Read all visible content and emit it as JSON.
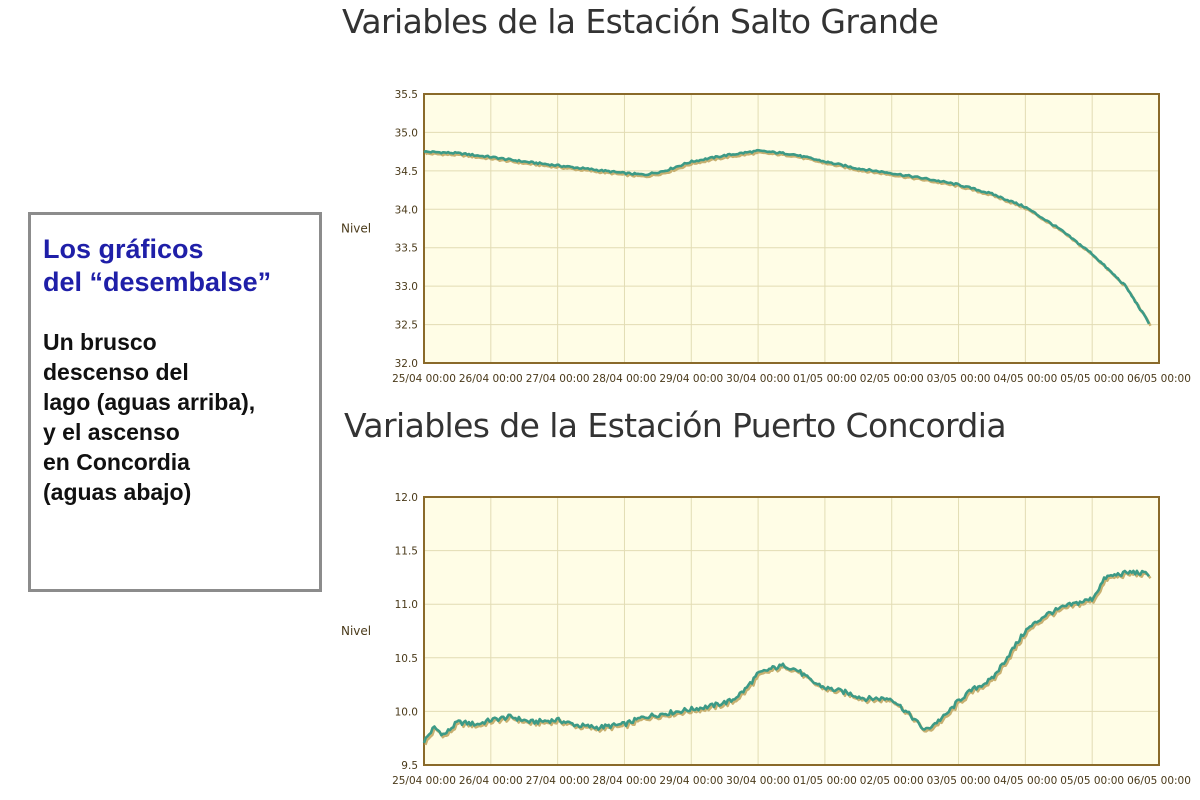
{
  "titles": {
    "top": "Variables de la Estación Salto Grande",
    "bottom": "Variables de la Estación Puerto Concordia"
  },
  "note": {
    "heading_lines": [
      "Los gráficos",
      "del “desembalse”"
    ],
    "body_lines": [
      "Un brusco",
      "descenso del",
      "lago (aguas arriba),",
      "y el ascenso",
      "en Concordia",
      "(aguas abajo)"
    ]
  },
  "colors": {
    "plot_background": "#fffde6",
    "grid": "#e2dcb4",
    "frame": "#8a6a2a",
    "series_line": "#3c9a86",
    "series_shadow": "#c8b070",
    "note_heading": "#1f1fa8",
    "note_border": "#8c8c8c"
  },
  "chart_data": [
    {
      "type": "line",
      "title": "Variables de la Estación Salto Grande",
      "ylabel": "Nivel",
      "xlabel": "",
      "ylim": [
        32.0,
        35.5
      ],
      "yticks": [
        "32.0",
        "32.5",
        "33.0",
        "33.5",
        "34.0",
        "34.5",
        "35.0",
        "35.5"
      ],
      "xlim": [
        0,
        11
      ],
      "xticks": [
        "25/04 00:00",
        "26/04 00:00",
        "27/04 00:00",
        "28/04 00:00",
        "29/04 00:00",
        "30/04 00:00",
        "01/05 00:00",
        "02/05 00:00",
        "03/05 00:00",
        "04/05 00:00",
        "05/05 00:00",
        "06/05 00:00"
      ],
      "grid": true,
      "series": [
        {
          "x": [
            0,
            0.5,
            1,
            1.5,
            2,
            2.5,
            3,
            3.3,
            3.6,
            4,
            4.5,
            5,
            5.5,
            6,
            6.5,
            7,
            7.5,
            8,
            8.5,
            9,
            9.5,
            10,
            10.5,
            10.85
          ],
          "values": [
            34.75,
            34.73,
            34.68,
            34.62,
            34.57,
            34.52,
            34.47,
            34.45,
            34.5,
            34.62,
            34.7,
            34.76,
            34.72,
            34.62,
            34.53,
            34.47,
            34.4,
            34.32,
            34.2,
            34.03,
            33.75,
            33.42,
            33.0,
            32.52
          ]
        }
      ]
    },
    {
      "type": "line",
      "title": "Variables de la Estación Puerto Concordia",
      "ylabel": "Nivel",
      "xlabel": "",
      "ylim": [
        9.5,
        12.0
      ],
      "yticks": [
        "9.5",
        "10.0",
        "10.5",
        "11.0",
        "11.5",
        "12.0"
      ],
      "xlim": [
        0,
        11
      ],
      "xticks": [
        "25/04 00:00",
        "26/04 00:00",
        "27/04 00:00",
        "28/04 00:00",
        "29/04 00:00",
        "30/04 00:00",
        "01/05 00:00",
        "02/05 00:00",
        "03/05 00:00",
        "04/05 00:00",
        "05/05 00:00",
        "06/05 00:00"
      ],
      "grid": true,
      "series": [
        {
          "x": [
            0,
            0.15,
            0.3,
            0.5,
            0.8,
            1,
            1.3,
            1.6,
            2,
            2.3,
            2.6,
            3,
            3.3,
            3.6,
            4,
            4.3,
            4.6,
            4.8,
            5,
            5.2,
            5.4,
            5.6,
            5.8,
            6,
            6.3,
            6.6,
            7,
            7.3,
            7.5,
            7.8,
            8,
            8.2,
            8.5,
            9,
            9.3,
            9.6,
            10,
            10.2,
            10.4,
            10.6,
            10.85
          ],
          "values": [
            9.72,
            9.85,
            9.78,
            9.9,
            9.88,
            9.92,
            9.95,
            9.9,
            9.92,
            9.87,
            9.85,
            9.88,
            9.95,
            9.98,
            10.02,
            10.05,
            10.1,
            10.2,
            10.35,
            10.4,
            10.43,
            10.38,
            10.28,
            10.22,
            10.18,
            10.12,
            10.12,
            9.95,
            9.82,
            9.96,
            10.1,
            10.2,
            10.3,
            10.75,
            10.9,
            10.98,
            11.05,
            11.25,
            11.28,
            11.3,
            11.28
          ]
        }
      ]
    }
  ]
}
